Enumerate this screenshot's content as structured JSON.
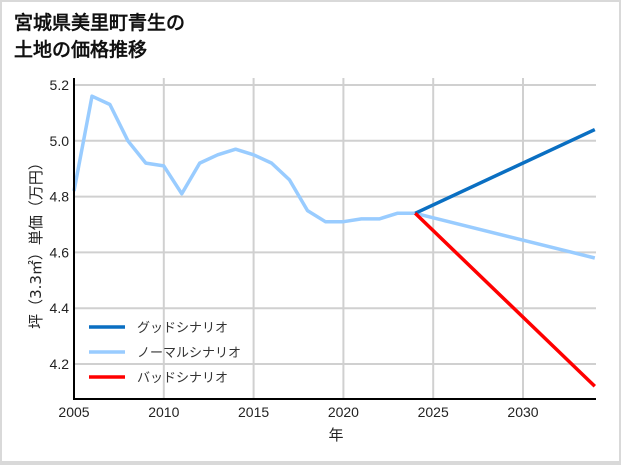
{
  "title_line1": "宮城県美里町青生の",
  "title_line2": "土地の価格推移",
  "chart_data": {
    "type": "line",
    "title": "宮城県美里町青生の土地の価格推移",
    "xlabel": "年",
    "ylabel": "坪（3.3㎡）単価（万円）",
    "xlim": [
      2005,
      2034
    ],
    "ylim": [
      4.07,
      5.2
    ],
    "x_ticks": [
      2005,
      2010,
      2015,
      2020,
      2025,
      2030
    ],
    "y_ticks": [
      4.2,
      4.4,
      4.6,
      4.8,
      5.0,
      5.2
    ],
    "grid": true,
    "legend_position": "lower left",
    "series": [
      {
        "name": "グッドシナリオ",
        "color": "#0a6fc2",
        "x": [
          2024,
          2034
        ],
        "values": [
          4.74,
          5.04
        ]
      },
      {
        "name": "ノーマルシナリオ",
        "color": "#99ccff",
        "x": [
          2005,
          2006,
          2007,
          2008,
          2009,
          2010,
          2011,
          2012,
          2013,
          2014,
          2015,
          2016,
          2017,
          2018,
          2019,
          2020,
          2021,
          2022,
          2023,
          2024,
          2034
        ],
        "values": [
          4.82,
          5.16,
          5.13,
          5.0,
          4.92,
          4.91,
          4.81,
          4.92,
          4.95,
          4.97,
          4.95,
          4.92,
          4.86,
          4.75,
          4.71,
          4.71,
          4.72,
          4.72,
          4.74,
          4.74,
          4.58
        ]
      },
      {
        "name": "バッドシナリオ",
        "color": "#ff0000",
        "x": [
          2024,
          2034
        ],
        "values": [
          4.74,
          4.12
        ]
      }
    ]
  }
}
